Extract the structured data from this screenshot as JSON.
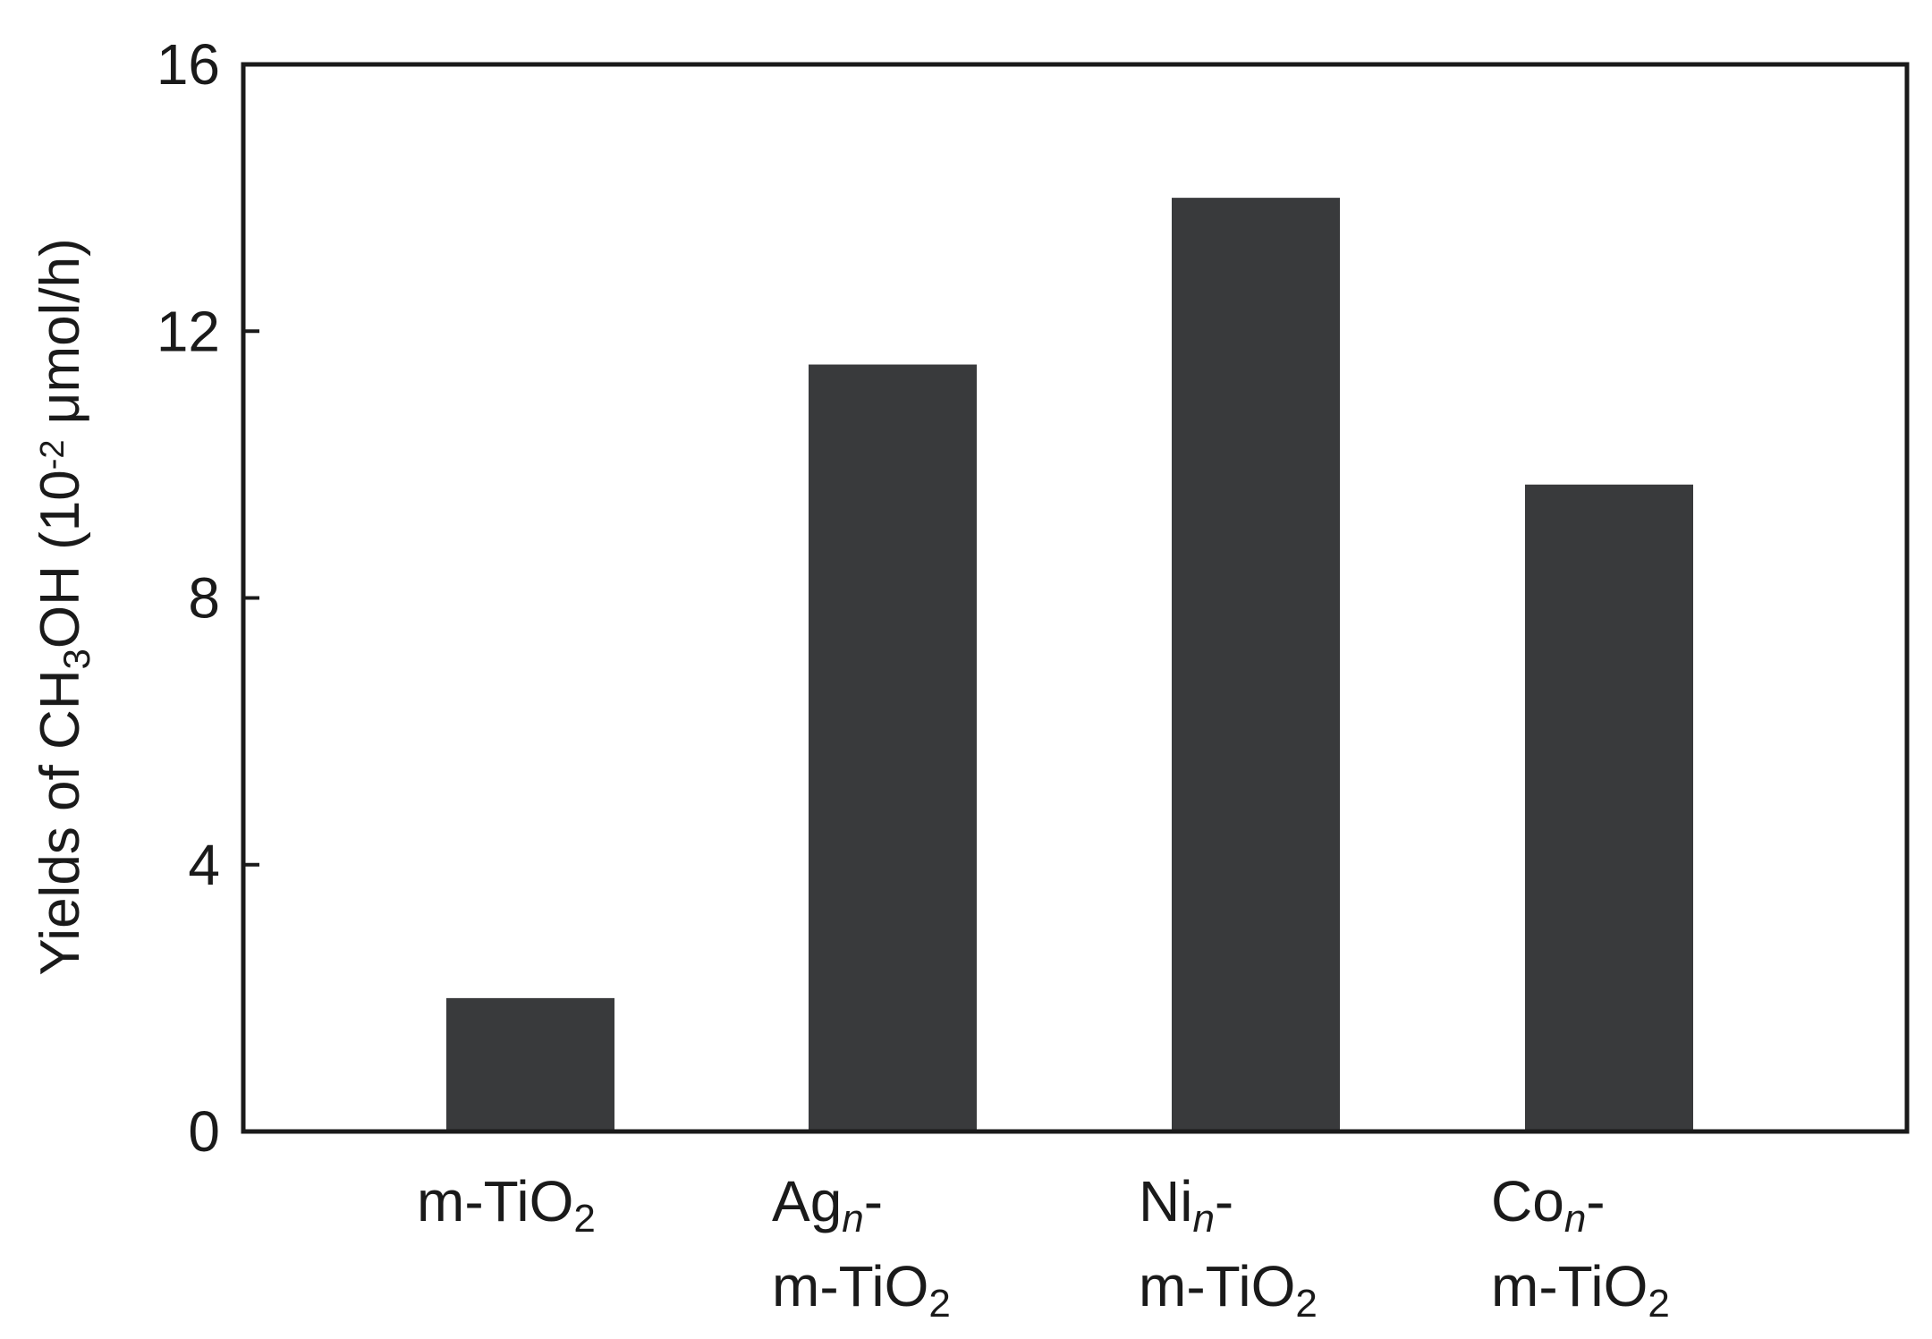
{
  "chart_data": {
    "type": "bar",
    "categories": [
      {
        "lines": [
          [
            {
              "t": "m-TiO"
            },
            {
              "t": "2",
              "sub": true
            }
          ]
        ]
      },
      {
        "lines": [
          [
            {
              "t": "Ag"
            },
            {
              "t": "n",
              "sub": true,
              "italic": true
            },
            {
              "t": "-"
            }
          ],
          [
            {
              "t": "m-TiO"
            },
            {
              "t": "2",
              "sub": true
            }
          ]
        ]
      },
      {
        "lines": [
          [
            {
              "t": "Ni"
            },
            {
              "t": "n",
              "sub": true,
              "italic": true
            },
            {
              "t": "-"
            }
          ],
          [
            {
              "t": "m-TiO"
            },
            {
              "t": "2",
              "sub": true
            }
          ]
        ]
      },
      {
        "lines": [
          [
            {
              "t": "Co"
            },
            {
              "t": "n",
              "sub": true,
              "italic": true
            },
            {
              "t": "-"
            }
          ],
          [
            {
              "t": "m-TiO"
            },
            {
              "t": "2",
              "sub": true
            }
          ]
        ]
      }
    ],
    "category_names": [
      "m-TiO2",
      "Agn-m-TiO2",
      "Nin-m-TiO2",
      "Con-m-TiO2"
    ],
    "values": [
      2.0,
      11.5,
      14.0,
      9.7
    ],
    "ylabel": [
      {
        "t": "Yields of CH"
      },
      {
        "t": "3",
        "sub": true
      },
      {
        "t": "OH (10"
      },
      {
        "t": "-2",
        "sup": true
      },
      {
        "t": " μmol/h)"
      }
    ],
    "ylim": [
      0,
      16
    ],
    "yticks": [
      0,
      4,
      8,
      12,
      16
    ],
    "bar_color": "#393a3c",
    "grid": false
  }
}
